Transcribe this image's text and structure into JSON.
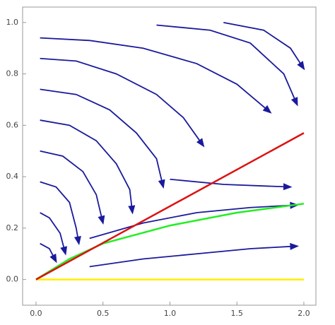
{
  "chart_data": {
    "type": "stream",
    "xlim": [
      -0.1,
      2.09
    ],
    "ylim": [
      -0.1,
      1.06
    ],
    "xticks": [
      {
        "value": 0,
        "label": "0.0"
      },
      {
        "value": 0.5,
        "label": "0.5"
      },
      {
        "value": 1,
        "label": "1.0"
      },
      {
        "value": 1.5,
        "label": "1.5"
      },
      {
        "value": 2,
        "label": "2.0"
      }
    ],
    "yticks": [
      {
        "value": 0,
        "label": "0.0"
      },
      {
        "value": 0.2,
        "label": "0.2"
      },
      {
        "value": 0.4,
        "label": "0.4"
      },
      {
        "value": 0.6,
        "label": "0.6"
      },
      {
        "value": 0.8,
        "label": "0.8"
      },
      {
        "value": 1,
        "label": "1.0"
      }
    ],
    "streamline_color": "#1a1a9c",
    "streamlines": [
      {
        "x": [
          0.03,
          0.4,
          0.8,
          1.2,
          1.5,
          1.75
        ],
        "y": [
          0.94,
          0.93,
          0.9,
          0.84,
          0.76,
          0.65
        ]
      },
      {
        "x": [
          0.03,
          0.3,
          0.6,
          0.9,
          1.1,
          1.25
        ],
        "y": [
          0.86,
          0.85,
          0.8,
          0.72,
          0.63,
          0.52
        ]
      },
      {
        "x": [
          0.03,
          0.3,
          0.55,
          0.75,
          0.9,
          0.95
        ],
        "y": [
          0.74,
          0.72,
          0.66,
          0.57,
          0.47,
          0.36
        ]
      },
      {
        "x": [
          0.03,
          0.25,
          0.45,
          0.6,
          0.7,
          0.72
        ],
        "y": [
          0.62,
          0.6,
          0.54,
          0.45,
          0.35,
          0.26
        ]
      },
      {
        "x": [
          0.03,
          0.2,
          0.35,
          0.45,
          0.5
        ],
        "y": [
          0.5,
          0.48,
          0.42,
          0.33,
          0.22
        ]
      },
      {
        "x": [
          0.03,
          0.15,
          0.25,
          0.3,
          0.32
        ],
        "y": [
          0.38,
          0.36,
          0.3,
          0.2,
          0.14
        ]
      },
      {
        "x": [
          0.03,
          0.1,
          0.18,
          0.22
        ],
        "y": [
          0.26,
          0.24,
          0.18,
          0.1
        ]
      },
      {
        "x": [
          0.03,
          0.1,
          0.15
        ],
        "y": [
          0.14,
          0.12,
          0.07
        ]
      },
      {
        "x": [
          0.9,
          1.3,
          1.6,
          1.85,
          1.95
        ],
        "y": [
          0.99,
          0.97,
          0.92,
          0.8,
          0.68
        ]
      },
      {
        "x": [
          1.4,
          1.7,
          1.9,
          2.0
        ],
        "y": [
          1.0,
          0.97,
          0.9,
          0.82
        ]
      },
      {
        "x": [
          1.0,
          1.4,
          1.9
        ],
        "y": [
          0.39,
          0.37,
          0.36
        ]
      },
      {
        "x": [
          0.4,
          0.8,
          1.2,
          1.6,
          1.95
        ],
        "y": [
          0.16,
          0.22,
          0.26,
          0.28,
          0.29
        ]
      },
      {
        "x": [
          0.4,
          0.8,
          1.2,
          1.6,
          1.95
        ],
        "y": [
          0.05,
          0.08,
          0.1,
          0.12,
          0.13
        ]
      }
    ],
    "series": [
      {
        "color": "#ffee00",
        "x": [
          0,
          2
        ],
        "y": [
          0,
          0
        ]
      },
      {
        "color": "#22ee22",
        "x": [
          0,
          0.25,
          0.5,
          1,
          1.5,
          2
        ],
        "y": [
          0,
          0.08,
          0.14,
          0.21,
          0.26,
          0.295
        ]
      },
      {
        "color": "#dd1111",
        "x": [
          0,
          2
        ],
        "y": [
          0,
          0.57
        ]
      }
    ]
  }
}
